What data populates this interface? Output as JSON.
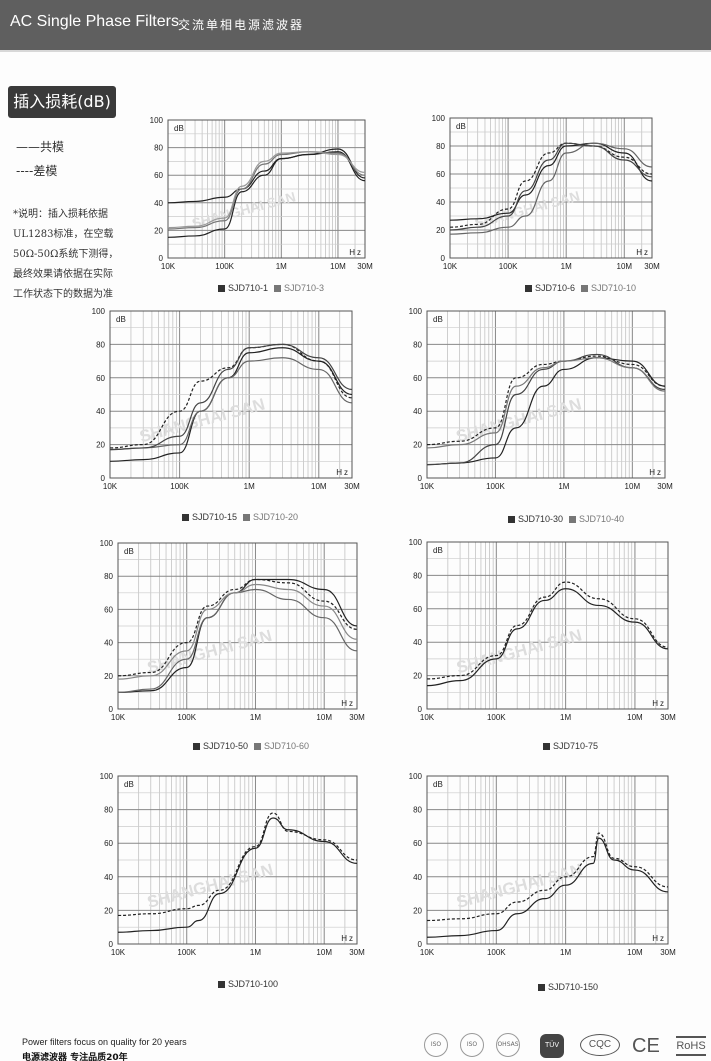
{
  "header": {
    "title_en": "AC Single Phase Filters",
    "title_cn": "交流单相电源滤波器"
  },
  "section_title": "插入损耗(dB)",
  "line_legend": {
    "common_mode": "——共模",
    "differential_mode": "----差模"
  },
  "note_lines": [
    "*说明：插入损耗依据",
    "UL1283标准，在空载",
    "50Ω-50Ω系统下测得，",
    "最终效果请依据在实际",
    "工作状态下的数据为准"
  ],
  "watermark": "SHANGHAI SAN",
  "colors": {
    "header_bg": "#5f5f5f",
    "dark": "#222222",
    "gray": "#777777",
    "grid": "#c8c8c8"
  },
  "chart_data": [
    {
      "type": "line",
      "ylabel": "dB",
      "xlabel": "Hz",
      "ylim": [
        0,
        100
      ],
      "yticks": [
        "0",
        "20",
        "40",
        "60",
        "80",
        "100"
      ],
      "xticks": [
        "10K",
        "100K",
        "1M",
        "10M",
        "30M"
      ],
      "xscale": "log",
      "xlim": [
        10000,
        30000000
      ],
      "legend": [
        {
          "label": "SJD710-1",
          "color": "#333333"
        },
        {
          "label": "SJD710-3",
          "color": "#777777"
        }
      ],
      "x": [
        10000,
        30000,
        100000,
        200000,
        500000,
        1000000,
        3000000,
        10000000,
        30000000
      ],
      "series": [
        {
          "name": "SJD710-1 CM",
          "style": "solid",
          "color": "#222222",
          "values": [
            40,
            41,
            44,
            50,
            63,
            72,
            75,
            79,
            58
          ]
        },
        {
          "name": "SJD710-1 DM",
          "style": "solid",
          "color": "#222222",
          "values": [
            15,
            16,
            21,
            48,
            60,
            72,
            75,
            77,
            56
          ]
        },
        {
          "name": "SJD710-3 CM",
          "style": "solid",
          "color": "#777777",
          "values": [
            21,
            22,
            27,
            50,
            68,
            75,
            77,
            76,
            60
          ]
        },
        {
          "name": "SJD710-3 DM",
          "style": "solid",
          "color": "#999999",
          "values": [
            22,
            23,
            29,
            52,
            70,
            76,
            77,
            75,
            62
          ]
        }
      ]
    },
    {
      "type": "line",
      "ylabel": "dB",
      "xlabel": "Hz",
      "ylim": [
        0,
        100
      ],
      "yticks": [
        "0",
        "20",
        "40",
        "60",
        "80",
        "100"
      ],
      "xticks": [
        "10K",
        "100K",
        "1M",
        "10M",
        "30M"
      ],
      "xscale": "log",
      "xlim": [
        10000,
        30000000
      ],
      "legend": [
        {
          "label": "SJD710-6",
          "color": "#333333"
        },
        {
          "label": "SJD710-10",
          "color": "#777777"
        }
      ],
      "x": [
        10000,
        30000,
        100000,
        200000,
        500000,
        1000000,
        3000000,
        10000000,
        30000000
      ],
      "series": [
        {
          "name": "SJD710-6 CM",
          "style": "solid",
          "color": "#222222",
          "values": [
            27,
            28,
            32,
            45,
            66,
            80,
            82,
            75,
            55
          ]
        },
        {
          "name": "SJD710-6 DM",
          "style": "dashed",
          "color": "#222222",
          "values": [
            22,
            24,
            35,
            55,
            75,
            82,
            80,
            72,
            60
          ]
        },
        {
          "name": "SJD710-10 CM",
          "style": "solid",
          "color": "#666666",
          "values": [
            17,
            18,
            22,
            30,
            55,
            75,
            82,
            78,
            65
          ]
        },
        {
          "name": "SJD710-10 DM",
          "style": "solid",
          "color": "#444444",
          "values": [
            20,
            22,
            30,
            48,
            70,
            82,
            80,
            70,
            58
          ]
        }
      ]
    },
    {
      "type": "line",
      "ylabel": "dB",
      "xlabel": "Hz",
      "ylim": [
        0,
        100
      ],
      "yticks": [
        "0",
        "20",
        "40",
        "60",
        "80",
        "100"
      ],
      "xticks": [
        "10K",
        "100K",
        "1M",
        "10M",
        "30M"
      ],
      "xscale": "log",
      "xlim": [
        10000,
        30000000
      ],
      "legend": [
        {
          "label": "SJD710-15",
          "color": "#333333"
        },
        {
          "label": "SJD710-20",
          "color": "#777777"
        }
      ],
      "x": [
        10000,
        30000,
        100000,
        200000,
        500000,
        1000000,
        3000000,
        10000000,
        30000000
      ],
      "series": [
        {
          "name": "SJD710-15 CM",
          "style": "solid",
          "color": "#222222",
          "values": [
            10,
            11,
            15,
            40,
            60,
            75,
            78,
            70,
            50
          ]
        },
        {
          "name": "SJD710-15 DM",
          "style": "dashed",
          "color": "#222222",
          "values": [
            18,
            20,
            40,
            58,
            66,
            78,
            80,
            70,
            48
          ]
        },
        {
          "name": "SJD710-20 CM",
          "style": "solid",
          "color": "#666666",
          "values": [
            17,
            18,
            20,
            40,
            60,
            70,
            72,
            65,
            45
          ]
        },
        {
          "name": "SJD710-20 DM",
          "style": "solid",
          "color": "#444444",
          "values": [
            17,
            18,
            25,
            45,
            65,
            78,
            80,
            72,
            53
          ]
        }
      ]
    },
    {
      "type": "line",
      "ylabel": "dB",
      "xlabel": "Hz",
      "ylim": [
        0,
        100
      ],
      "yticks": [
        "0",
        "20",
        "40",
        "60",
        "80",
        "100"
      ],
      "xticks": [
        "10K",
        "100K",
        "1M",
        "10M",
        "30M"
      ],
      "xscale": "log",
      "xlim": [
        10000,
        30000000
      ],
      "legend": [
        {
          "label": "SJD710-30",
          "color": "#333333"
        },
        {
          "label": "SJD710-40",
          "color": "#777777"
        }
      ],
      "x": [
        10000,
        30000,
        100000,
        200000,
        500000,
        1000000,
        3000000,
        10000000,
        30000000
      ],
      "series": [
        {
          "name": "SJD710-30 CM",
          "style": "solid",
          "color": "#222222",
          "values": [
            8,
            9,
            12,
            30,
            55,
            65,
            72,
            70,
            55
          ]
        },
        {
          "name": "SJD710-30 DM",
          "style": "dashed",
          "color": "#222222",
          "values": [
            20,
            22,
            30,
            60,
            68,
            70,
            73,
            68,
            55
          ]
        },
        {
          "name": "SJD710-40 CM",
          "style": "solid",
          "color": "#444444",
          "values": [
            8,
            9,
            20,
            50,
            65,
            70,
            74,
            66,
            53
          ]
        },
        {
          "name": "SJD710-40 DM",
          "style": "solid",
          "color": "#777777",
          "values": [
            18,
            20,
            27,
            55,
            66,
            70,
            72,
            66,
            52
          ]
        }
      ]
    },
    {
      "type": "line",
      "ylabel": "dB",
      "xlabel": "Hz",
      "ylim": [
        0,
        100
      ],
      "yticks": [
        "0",
        "20",
        "40",
        "60",
        "80",
        "100"
      ],
      "xticks": [
        "10K",
        "100K",
        "1M",
        "10M",
        "30M"
      ],
      "xscale": "log",
      "xlim": [
        10000,
        30000000
      ],
      "legend": [
        {
          "label": "SJD710-50",
          "color": "#333333"
        },
        {
          "label": "SJD710-60",
          "color": "#777777"
        }
      ],
      "x": [
        10000,
        30000,
        100000,
        200000,
        500000,
        1000000,
        3000000,
        10000000,
        30000000
      ],
      "series": [
        {
          "name": "SJD710-50 CM",
          "style": "solid",
          "color": "#222222",
          "values": [
            10,
            11,
            25,
            55,
            70,
            78,
            78,
            72,
            50
          ]
        },
        {
          "name": "SJD710-50 DM",
          "style": "dashed",
          "color": "#222222",
          "values": [
            20,
            22,
            40,
            62,
            72,
            78,
            76,
            65,
            48
          ]
        },
        {
          "name": "SJD710-60 CM",
          "style": "solid",
          "color": "#666666",
          "values": [
            10,
            12,
            30,
            55,
            70,
            72,
            66,
            55,
            35
          ]
        },
        {
          "name": "SJD710-60 DM",
          "style": "solid",
          "color": "#888888",
          "values": [
            18,
            20,
            35,
            60,
            70,
            75,
            72,
            62,
            42
          ]
        }
      ]
    },
    {
      "type": "line",
      "ylabel": "dB",
      "xlabel": "Hz",
      "ylim": [
        0,
        100
      ],
      "yticks": [
        "0",
        "20",
        "40",
        "60",
        "80",
        "100"
      ],
      "xticks": [
        "10K",
        "100K",
        "1M",
        "10M",
        "30M"
      ],
      "xscale": "log",
      "xlim": [
        10000,
        30000000
      ],
      "legend": [
        {
          "label": "SJD710-75",
          "color": "#333333"
        }
      ],
      "x": [
        10000,
        30000,
        100000,
        200000,
        500000,
        1000000,
        3000000,
        10000000,
        30000000
      ],
      "series": [
        {
          "name": "SJD710-75 CM",
          "style": "solid",
          "color": "#222222",
          "values": [
            14,
            17,
            30,
            48,
            65,
            72,
            62,
            52,
            36
          ]
        },
        {
          "name": "SJD710-75 DM",
          "style": "dashed",
          "color": "#222222",
          "values": [
            18,
            20,
            32,
            50,
            67,
            76,
            66,
            54,
            37
          ]
        }
      ]
    },
    {
      "type": "line",
      "ylabel": "dB",
      "xlabel": "Hz",
      "ylim": [
        0,
        100
      ],
      "yticks": [
        "0",
        "20",
        "40",
        "60",
        "80",
        "100"
      ],
      "xticks": [
        "10K",
        "100K",
        "1M",
        "10M",
        "30M"
      ],
      "xscale": "log",
      "xlim": [
        10000,
        30000000
      ],
      "legend": [
        {
          "label": "SJD710-100",
          "color": "#333333"
        }
      ],
      "x": [
        10000,
        30000,
        100000,
        150000,
        300000,
        1000000,
        1800000,
        3000000,
        10000000,
        30000000
      ],
      "series": [
        {
          "name": "SJD710-100 CM",
          "style": "solid",
          "color": "#222222",
          "values": [
            7,
            8,
            10,
            14,
            30,
            57,
            75,
            68,
            61,
            48
          ]
        },
        {
          "name": "SJD710-100 DM",
          "style": "dashed",
          "color": "#222222",
          "values": [
            17,
            18,
            21,
            23,
            32,
            58,
            78,
            67,
            62,
            50
          ]
        }
      ]
    },
    {
      "type": "line",
      "ylabel": "dB",
      "xlabel": "Hz",
      "ylim": [
        0,
        100
      ],
      "yticks": [
        "0",
        "20",
        "40",
        "60",
        "80",
        "100"
      ],
      "xticks": [
        "10K",
        "100K",
        "1M",
        "10M",
        "30M"
      ],
      "xscale": "log",
      "xlim": [
        10000,
        30000000
      ],
      "legend": [
        {
          "label": "SJD710-150",
          "color": "#333333"
        }
      ],
      "x": [
        10000,
        30000,
        100000,
        200000,
        500000,
        1000000,
        2500000,
        3000000,
        5000000,
        10000000,
        30000000
      ],
      "series": [
        {
          "name": "SJD710-150 CM",
          "style": "solid",
          "color": "#222222",
          "values": [
            4,
            5,
            8,
            18,
            27,
            35,
            48,
            63,
            50,
            44,
            31
          ]
        },
        {
          "name": "SJD710-150 DM",
          "style": "dashed",
          "color": "#222222",
          "values": [
            14,
            15,
            18,
            25,
            32,
            40,
            52,
            66,
            51,
            46,
            34
          ]
        }
      ]
    }
  ],
  "footer": {
    "slogan_en": "Power filters focus on quality for 20 years",
    "slogan_cn": "电源滤波器  专注品质20年",
    "certs": [
      "ISO 9001",
      "ISO 14001",
      "OHSAS 18001",
      "TÜV",
      "CQC",
      "CE",
      "RoHS"
    ]
  }
}
